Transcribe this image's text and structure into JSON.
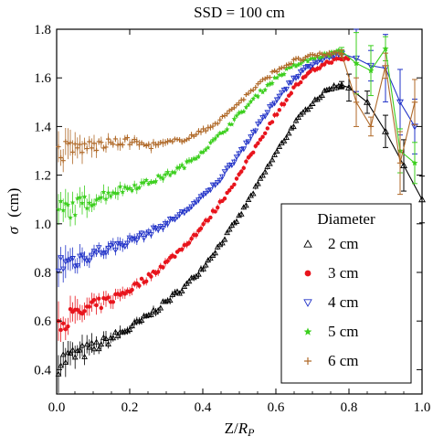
{
  "chart_data": {
    "type": "scatter",
    "title": "SSD = 100 cm",
    "xlabel_main": "Z",
    "xlabel_sep": "/",
    "xlabel_r": "R",
    "xlabel_sub": "P",
    "ylabel_symbol": "σ",
    "ylabel_unit": "(cm)",
    "xlim": [
      0.0,
      1.0
    ],
    "ylim": [
      0.3,
      1.8
    ],
    "xticks": [
      0.0,
      0.2,
      0.4,
      0.6,
      0.8,
      1.0
    ],
    "yticks": [
      0.4,
      0.6,
      0.8,
      1.0,
      1.2,
      1.4,
      1.6,
      1.8
    ],
    "xtick_labels": [
      "0.0",
      "0.2",
      "0.4",
      "0.6",
      "0.8",
      "1.0"
    ],
    "ytick_labels": [
      "0.4",
      "0.6",
      "0.8",
      "1.0",
      "1.2",
      "1.4",
      "1.6",
      "1.8"
    ],
    "grid": false,
    "legend": {
      "title": "Diameter",
      "placement": "bottom-right",
      "entries": [
        "2 cm",
        "3 cm",
        "4 cm",
        "5 cm",
        "6 cm"
      ]
    },
    "series": [
      {
        "name": "2 cm",
        "color": "#000000",
        "marker": "triangle-up-open",
        "connect_after": 0.78,
        "x": [
          0.0,
          0.05,
          0.1,
          0.15,
          0.2,
          0.25,
          0.3,
          0.35,
          0.4,
          0.45,
          0.5,
          0.55,
          0.6,
          0.65,
          0.7,
          0.75,
          0.78,
          0.8,
          0.85,
          0.9,
          0.95,
          1.0
        ],
        "y": [
          0.43,
          0.46,
          0.49,
          0.53,
          0.57,
          0.62,
          0.68,
          0.74,
          0.82,
          0.92,
          1.03,
          1.16,
          1.29,
          1.41,
          1.5,
          1.56,
          1.57,
          1.56,
          1.5,
          1.38,
          1.24,
          1.1
        ]
      },
      {
        "name": "3 cm",
        "color": "#e8141c",
        "marker": "circle-filled",
        "connect_after": 2.0,
        "x": [
          0.0,
          0.05,
          0.1,
          0.15,
          0.2,
          0.25,
          0.3,
          0.35,
          0.4,
          0.45,
          0.5,
          0.55,
          0.6,
          0.65,
          0.7,
          0.75,
          0.8
        ],
        "y": [
          0.6,
          0.62,
          0.66,
          0.69,
          0.73,
          0.78,
          0.84,
          0.91,
          0.99,
          1.09,
          1.2,
          1.33,
          1.45,
          1.56,
          1.63,
          1.67,
          1.68
        ]
      },
      {
        "name": "4 cm",
        "color": "#2233c8",
        "marker": "triangle-down-open",
        "connect_after": 0.78,
        "x": [
          0.0,
          0.05,
          0.1,
          0.15,
          0.2,
          0.25,
          0.3,
          0.35,
          0.4,
          0.45,
          0.5,
          0.55,
          0.6,
          0.65,
          0.7,
          0.75,
          0.78,
          0.82,
          0.86,
          0.9,
          0.94,
          0.98
        ],
        "y": [
          0.83,
          0.85,
          0.88,
          0.9,
          0.93,
          0.96,
          1.0,
          1.05,
          1.11,
          1.19,
          1.29,
          1.4,
          1.51,
          1.6,
          1.66,
          1.69,
          1.7,
          1.68,
          1.65,
          1.64,
          1.5,
          1.4
        ]
      },
      {
        "name": "5 cm",
        "color": "#3ccf1e",
        "marker": "star-filled",
        "connect_after": 0.78,
        "x": [
          0.0,
          0.05,
          0.1,
          0.15,
          0.2,
          0.25,
          0.3,
          0.35,
          0.4,
          0.45,
          0.5,
          0.55,
          0.6,
          0.65,
          0.7,
          0.75,
          0.78,
          0.82,
          0.86,
          0.9,
          0.94,
          0.98
        ],
        "y": [
          1.05,
          1.07,
          1.1,
          1.13,
          1.15,
          1.17,
          1.2,
          1.24,
          1.3,
          1.37,
          1.45,
          1.53,
          1.6,
          1.65,
          1.68,
          1.7,
          1.71,
          1.66,
          1.63,
          1.72,
          1.3,
          1.25
        ]
      },
      {
        "name": "6 cm",
        "color": "#b06a2a",
        "marker": "plus",
        "connect_after": 0.78,
        "x": [
          0.0,
          0.05,
          0.1,
          0.15,
          0.2,
          0.25,
          0.3,
          0.35,
          0.4,
          0.45,
          0.5,
          0.55,
          0.6,
          0.65,
          0.7,
          0.75,
          0.78,
          0.82,
          0.86,
          0.9,
          0.94,
          0.98
        ],
        "y": [
          1.29,
          1.31,
          1.32,
          1.33,
          1.34,
          1.32,
          1.33,
          1.35,
          1.38,
          1.43,
          1.5,
          1.57,
          1.63,
          1.67,
          1.69,
          1.7,
          1.7,
          1.5,
          1.4,
          1.65,
          1.25,
          1.5
        ]
      }
    ]
  }
}
